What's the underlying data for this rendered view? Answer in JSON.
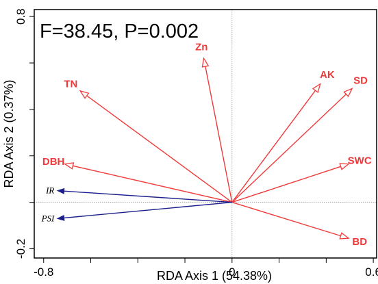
{
  "chart_data": {
    "type": "biplot",
    "annotation": "F=38.45, P=0.002",
    "xlabel": "RDA Axis 1 (54.38%)",
    "ylabel": "RDA Axis 2 (0.37%)",
    "xlim": [
      -0.84,
      0.62
    ],
    "ylim": [
      -0.24,
      0.83
    ],
    "x_ticks": [
      {
        "value": -0.8,
        "label": "-0.8"
      },
      {
        "value": -0.6,
        "label": ""
      },
      {
        "value": -0.4,
        "label": ""
      },
      {
        "value": -0.2,
        "label": ""
      },
      {
        "value": 0.0,
        "label": "0"
      },
      {
        "value": 0.2,
        "label": ""
      },
      {
        "value": 0.4,
        "label": ""
      },
      {
        "value": 0.6,
        "label": "0.6"
      }
    ],
    "y_ticks": [
      {
        "value": -0.2,
        "label": "-0.2"
      },
      {
        "value": 0.0,
        "label": ""
      },
      {
        "value": 0.2,
        "label": ""
      },
      {
        "value": 0.4,
        "label": ""
      },
      {
        "value": 0.6,
        "label": ""
      },
      {
        "value": 0.8,
        "label": "0.8"
      }
    ],
    "reference_lines": {
      "x": 0,
      "y": 0
    },
    "grid": false,
    "environmental_vectors": {
      "color": "#f03a3a",
      "arrowhead": "open",
      "items": [
        {
          "label": "Zn",
          "x": -0.12,
          "y": 0.62
        },
        {
          "label": "TN",
          "x": -0.645,
          "y": 0.48
        },
        {
          "label": "AK",
          "x": 0.375,
          "y": 0.51
        },
        {
          "label": "SD",
          "x": 0.51,
          "y": 0.49
        },
        {
          "label": "SWC",
          "x": 0.495,
          "y": 0.165
        },
        {
          "label": "DBH",
          "x": -0.71,
          "y": 0.165
        },
        {
          "label": "BD",
          "x": 0.495,
          "y": -0.155
        }
      ]
    },
    "species_vectors": {
      "color": "#1c1e8c",
      "arrowhead": "filled",
      "items": [
        {
          "label": "IR",
          "x": -0.74,
          "y": 0.05
        },
        {
          "label": "PSI",
          "x": -0.74,
          "y": -0.07
        }
      ]
    }
  }
}
